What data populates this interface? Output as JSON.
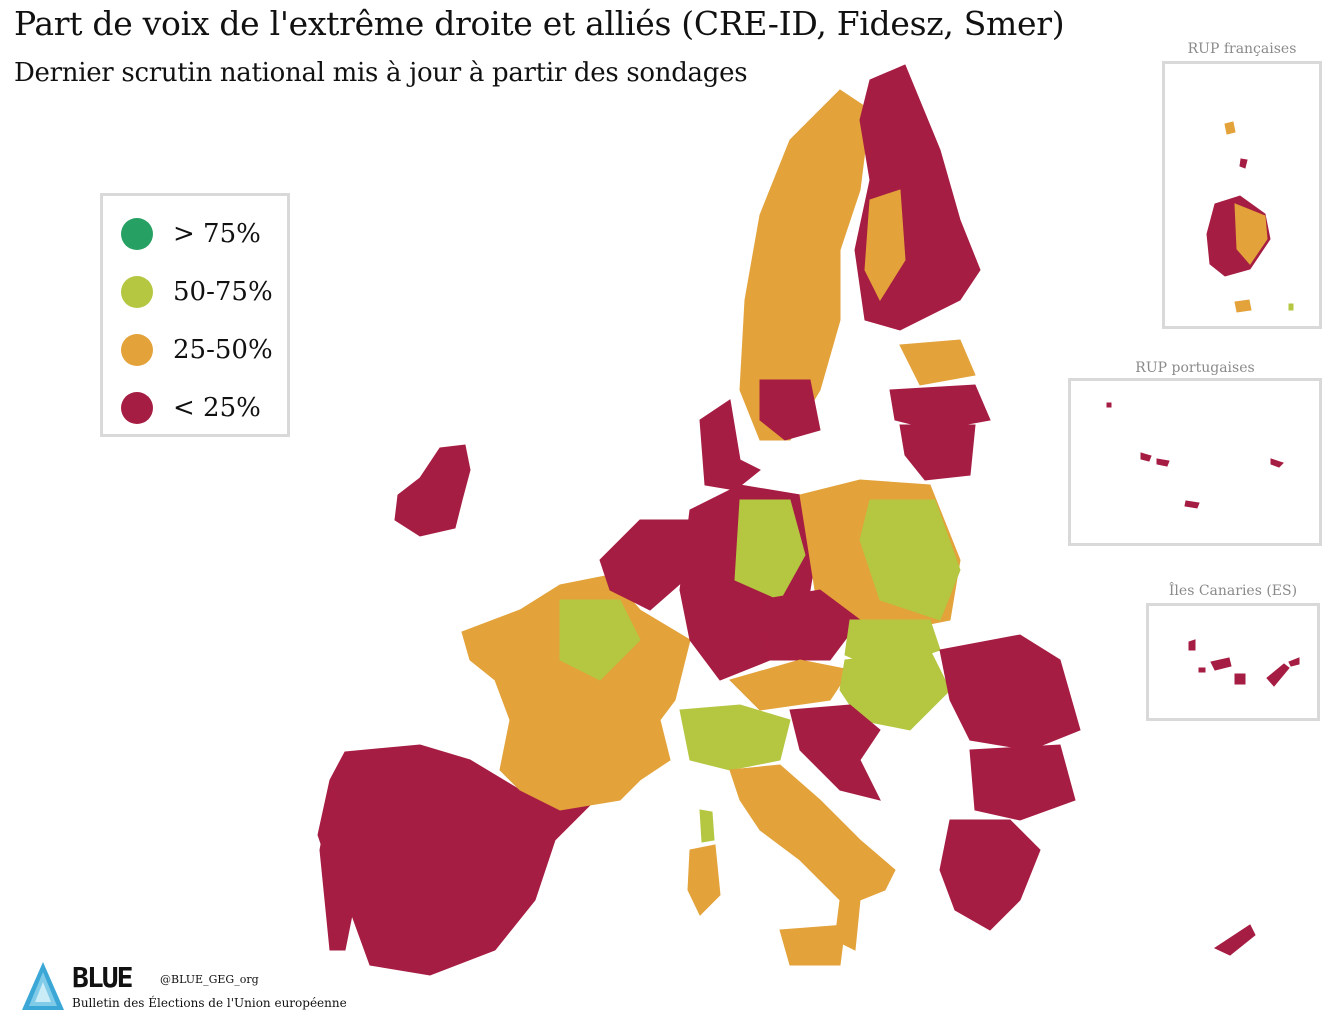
{
  "title": "Part de voix de l'extrême droite et alliés (CRE-ID, Fidesz, Smer)",
  "subtitle": "Dernier scrutin national mis à jour à partir des sondages",
  "colors": {
    "gt75": "#27a163",
    "c50_75": "#b5c640",
    "c25_50": "#e3a23a",
    "lt25": "#a61d43"
  },
  "legend": [
    {
      "label": "> 75%",
      "color": "#27a163"
    },
    {
      "label": "50-75%",
      "color": "#b5c640"
    },
    {
      "label": "25-50%",
      "color": "#e3a23a"
    },
    {
      "label": "< 25%",
      "color": "#a61d43"
    }
  ],
  "insets": {
    "french": "RUP françaises",
    "portuguese": "RUP portugaises",
    "canaries": "Îles Canaries (ES)"
  },
  "branding": {
    "logo_word": "BLUE",
    "caption": "Bulletin des Élections de l'Union européenne",
    "handle": "@BLUE_GEG_org"
  }
}
